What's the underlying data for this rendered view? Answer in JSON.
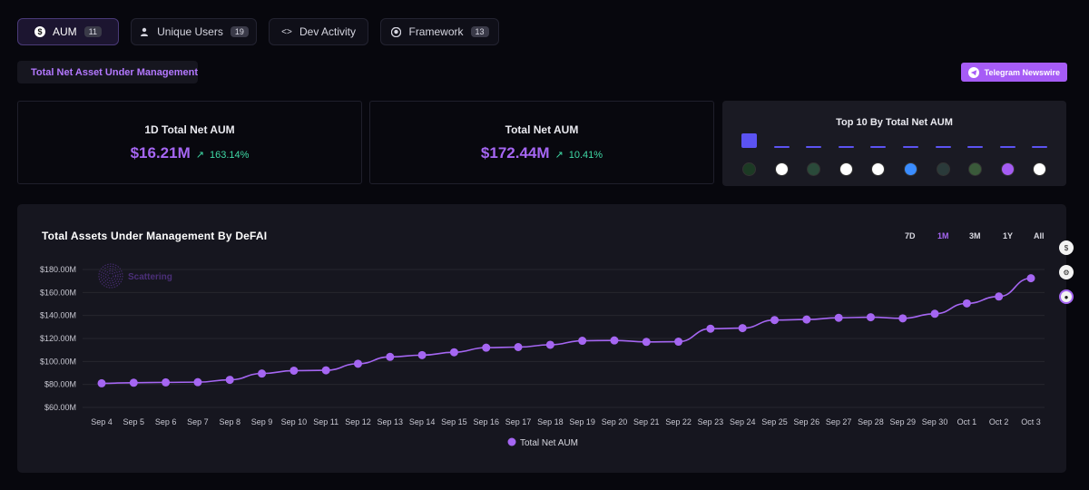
{
  "tabs": [
    {
      "label": "AUM",
      "count": "11",
      "icon": "dollar-icon",
      "active": true
    },
    {
      "label": "Unique Users",
      "count": "19",
      "icon": "user-icon",
      "active": false
    },
    {
      "label": "Dev Activity",
      "count": "",
      "icon": "code-icon",
      "active": false
    },
    {
      "label": "Framework",
      "count": "13",
      "icon": "github-icon",
      "active": false
    }
  ],
  "section_label": "Total Net Asset Under Management",
  "telegram_button": "Telegram Newswire",
  "cards": {
    "daily": {
      "title": "1D Total Net AUM",
      "value": "$16.21M",
      "change": "163.14%"
    },
    "total": {
      "title": "Total Net AUM",
      "value": "$172.44M",
      "change": "10.41%"
    }
  },
  "top10": {
    "title": "Top 10 By Total Net AUM",
    "relative_values": [
      1.0,
      0.12,
      0.1,
      0.06,
      0.05,
      0.05,
      0.04,
      0.04,
      0.04,
      0.04
    ],
    "logo_icons": [
      "aixbt-icon",
      "triangle-icon",
      "globe-icon",
      "grid-icon",
      "x-icon",
      "drop-icon",
      "wave-icon",
      "avatar-icon",
      "badge-icon",
      "block-icon"
    ],
    "logo_colors": [
      "#1c3a24",
      "#ffffff",
      "#2a4a3a",
      "#ffffff",
      "#ffffff",
      "#3a8cff",
      "#2a3a3a",
      "#3a5a3a",
      "#a55cf2",
      "#ffffff"
    ]
  },
  "chart_panel": {
    "title": "Total Assets Under Management By DeFAI",
    "ranges": [
      "7D",
      "1M",
      "3M",
      "1Y",
      "All"
    ],
    "active_range": "1M",
    "watermark": "Scattering"
  },
  "colors": {
    "accent": "#a566f2",
    "positive": "#3fd9a5",
    "bar": "#5b53f2"
  },
  "chart_data": {
    "type": "line",
    "title": "Total Assets Under Management By DeFAI",
    "x": [
      "Sep 4",
      "Sep 5",
      "Sep 6",
      "Sep 7",
      "Sep 8",
      "Sep 9",
      "Sep 10",
      "Sep 11",
      "Sep 12",
      "Sep 13",
      "Sep 14",
      "Sep 15",
      "Sep 16",
      "Sep 17",
      "Sep 18",
      "Sep 19",
      "Sep 20",
      "Sep 21",
      "Sep 22",
      "Sep 23",
      "Sep 24",
      "Sep 25",
      "Sep 26",
      "Sep 27",
      "Sep 28",
      "Sep 29",
      "Sep 30",
      "Oct 1",
      "Oct 2",
      "Oct 3"
    ],
    "series": [
      {
        "name": "Total Net AUM",
        "color": "#a566f2",
        "values": [
          81.0,
          81.5,
          81.8,
          82.0,
          84.0,
          89.5,
          92.0,
          92.3,
          98.0,
          104.0,
          105.5,
          108.0,
          112.0,
          112.5,
          114.5,
          118.0,
          118.3,
          117.0,
          117.2,
          128.5,
          129.0,
          136.0,
          136.5,
          138.0,
          138.5,
          137.5,
          141.5,
          150.5,
          156.5,
          172.4
        ]
      }
    ],
    "y_ticks": [
      "$60.00M",
      "$80.00M",
      "$100.00M",
      "$120.00M",
      "$140.00M",
      "$160.00M",
      "$180.00M"
    ],
    "ylim": [
      60,
      180
    ],
    "grid": true,
    "legend": "bottom-center",
    "legend_label": "Total Net AUM"
  }
}
